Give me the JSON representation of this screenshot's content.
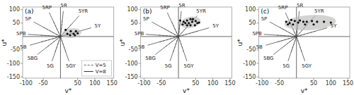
{
  "chart_data": [
    {
      "type": "scatter",
      "title": "(a)",
      "xlabel": "v*",
      "ylabel": "u*",
      "xlim": [
        -110,
        155
      ],
      "ylim": [
        -155,
        110
      ],
      "xticks": [
        -100,
        -50,
        50,
        100,
        150
      ],
      "yticks": [
        -150,
        -100,
        -50,
        50,
        100
      ],
      "grid": false,
      "legend": "lower right",
      "axis_lines": {
        "x": 0,
        "y": 0
      },
      "x": [
        15,
        30,
        45,
        20,
        38,
        50,
        28,
        42
      ],
      "values": [
        25,
        20,
        20,
        10,
        10,
        12,
        5,
        5
      ],
      "color": "#111111",
      "ellipse": {
        "cx": 33,
        "cy": 13,
        "rx": 28,
        "ry": 18,
        "angle": 10,
        "color": "#bbbbbb"
      },
      "hue_labels": [
        "5R",
        "5YR",
        "5RP",
        "5P",
        "5PB",
        "5B",
        "5BG",
        "5G",
        "5GY",
        "5Y"
      ],
      "hue_angles": [
        85,
        55,
        110,
        145,
        175,
        200,
        225,
        255,
        285,
        20
      ],
      "label_radius": 115,
      "series": [
        {
          "name": "V=5",
          "radius": 60,
          "color": "#666666",
          "line_style": "dashed"
        },
        {
          "name": "V=8",
          "radius": 95,
          "color": "#333333",
          "line_style": "solid"
        }
      ]
    },
    {
      "type": "scatter",
      "title": "(b)",
      "xlabel": "v*",
      "ylabel": "u*",
      "xlim": [
        -110,
        155
      ],
      "ylim": [
        -155,
        110
      ],
      "xticks": [
        -100,
        -50,
        50,
        100,
        150
      ],
      "yticks": [
        -150,
        -100,
        -50,
        50,
        100
      ],
      "grid": false,
      "axis_lines": {
        "x": 0,
        "y": 0
      },
      "x": [
        5,
        15,
        25,
        35,
        40,
        50,
        55,
        30,
        20,
        35,
        48,
        60,
        12,
        42,
        25
      ],
      "values": [
        60,
        55,
        60,
        65,
        55,
        58,
        50,
        50,
        50,
        42,
        42,
        52,
        45,
        65,
        42
      ],
      "color": "#111111",
      "ellipse": {
        "cx": 35,
        "cy": 53,
        "rx": 30,
        "ry": 20,
        "angle": 20,
        "color": "#bbbbbb"
      },
      "hue_labels": [
        "5R",
        "5YR",
        "5RP",
        "5P",
        "5PB",
        "5B",
        "5BG",
        "5G",
        "5GY",
        "5Y"
      ],
      "hue_angles": [
        85,
        55,
        110,
        145,
        175,
        200,
        225,
        255,
        285,
        20
      ],
      "label_radius": 115,
      "series": [
        {
          "radius": 60,
          "color": "#666666",
          "line_style": "dashed"
        },
        {
          "radius": 95,
          "color": "#333333",
          "line_style": "solid"
        }
      ]
    },
    {
      "type": "scatter",
      "title": "(c)",
      "xlabel": "v*",
      "ylabel": "u*",
      "xlim": [
        -110,
        155
      ],
      "ylim": [
        -155,
        110
      ],
      "xticks": [
        -100,
        -50,
        50,
        100,
        150
      ],
      "yticks": [
        -150,
        -100,
        -50,
        50,
        100
      ],
      "grid": false,
      "axis_lines": {
        "x": 0,
        "y": 0
      },
      "x": [
        -30,
        -20,
        -15,
        -5,
        5,
        10,
        20,
        30,
        45,
        60,
        80,
        100,
        -10,
        25,
        50,
        -25
      ],
      "values": [
        55,
        50,
        62,
        58,
        52,
        60,
        55,
        55,
        58,
        55,
        55,
        52,
        45,
        45,
        45,
        45
      ],
      "color": "#111111",
      "ellipse": {
        "cx": 40,
        "cy": 52,
        "rx": 75,
        "ry": 28,
        "angle": 5,
        "color": "#bbbbbb"
      },
      "hue_labels": [
        "5R",
        "5YR",
        "5RP",
        "5P",
        "5PB",
        "5B",
        "5BG",
        "5G",
        "5GY",
        "5Y"
      ],
      "hue_angles": [
        85,
        55,
        110,
        145,
        175,
        200,
        225,
        255,
        285,
        20
      ],
      "label_radius": 115,
      "series": [
        {
          "radius": 60,
          "color": "#666666",
          "line_style": "dashed"
        },
        {
          "radius": 95,
          "color": "#333333",
          "line_style": "solid"
        }
      ]
    }
  ]
}
